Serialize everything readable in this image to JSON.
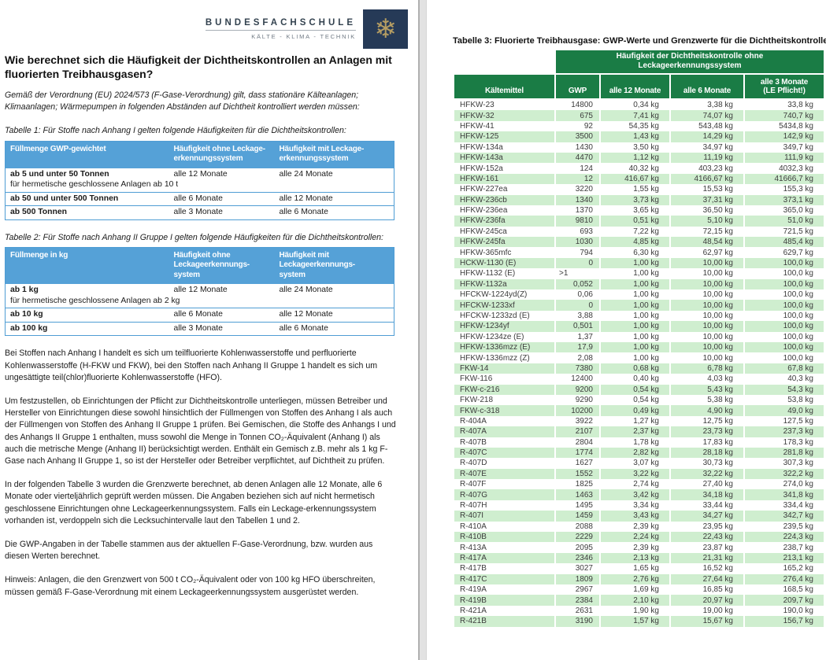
{
  "page_left": {
    "logo": {
      "name": "BUNDESFACHSCHULE",
      "tagline": "KÄLTE - KLIMA - TECHNIK",
      "snowflake_glyph": "❄",
      "navy_color": "#263a57",
      "gold_color": "#b59d62"
    },
    "heading": "Wie berechnet sich die Häufigkeit der Dichtheitskontrollen an Anlagen mit fluorierten Treibhausgasen?",
    "intro": "Gemäß der Verordnung (EU) 2024/573 (F-Gase-Verordnung) gilt, dass stationäre Kälteanlagen; Klimaanlagen; Wärmepumpen in folgenden Abständen auf Dichtheit kontrolliert werden müssen:",
    "table1_caption": "Tabelle 1: Für Stoffe nach Anhang I gelten folgende Häufigkeiten für die Dichtheitskontrollen:",
    "table1": {
      "headers": [
        "Füllmenge GWP-gewichtet",
        "Häufigkeit ohne Leckage-\nerkennungssystem",
        "Häufigkeit mit Leckage-\nerkennungssystem"
      ],
      "rows": [
        {
          "label": "ab 5 und unter 50 Tonnen",
          "sublabel": "für hermetische geschlossene Anlagen ab 10 t",
          "ohne": "alle 12 Monate",
          "mit": "alle 24 Monate"
        },
        {
          "label": "ab 50 und unter 500 Tonnen",
          "sublabel": "",
          "ohne": "alle 6 Monate",
          "mit": "alle 12 Monate"
        },
        {
          "label": "ab 500 Tonnen",
          "sublabel": "",
          "ohne": "alle 3 Monate",
          "mit": "alle 6 Monate"
        }
      ],
      "header_color": "#55a1d7"
    },
    "table2_caption": "Tabelle 2: Für Stoffe nach Anhang II Gruppe I gelten folgende Häufigkeiten für die Dichtheitskontrollen:",
    "table2": {
      "headers": [
        "Füllmenge in kg",
        "Häufigkeit ohne\nLeckageerkennungs-\nsystem",
        "Häufigkeit mit\nLeckageerkennungs-\nsystem"
      ],
      "rows": [
        {
          "label": "ab 1 kg",
          "sublabel": "für hermetische geschlossene Anlagen ab 2 kg",
          "ohne": "alle 12 Monate",
          "mit": "alle 24 Monate"
        },
        {
          "label": "ab 10 kg",
          "sublabel": "",
          "ohne": "alle 6 Monate",
          "mit": "alle 12 Monate"
        },
        {
          "label": "ab 100 kg",
          "sublabel": "",
          "ohne": "alle 3 Monate",
          "mit": "alle 6 Monate"
        }
      ],
      "header_color": "#55a1d7"
    },
    "paragraphs": [
      "Bei Stoffen nach Anhang I handelt es sich um teilfluorierte Kohlenwasserstoffe und perfluorierte Kohlenwasserstoffe (H-FKW und FKW), bei den Stoffen nach Anhang II Gruppe 1 handelt es sich um ungesättigte teil(chlor)fluorierte Kohlenwasserstoffe (HFO).",
      "Um festzustellen, ob Einrichtungen der Pflicht zur Dichtheitskontrolle unterliegen, müssen Betreiber und Hersteller von Einrichtungen diese sowohl hinsichtlich der Füllmengen von Stoffen des Anhang I als auch der Füllmengen von Stoffen des Anhang II Gruppe 1 prüfen. Bei Gemischen, die Stoffe des Anhangs I und des Anhangs II Gruppe 1 enthalten, muss sowohl die Menge in Tonnen CO₂-Äquivalent (Anhang I) als auch die metrische Menge (Anhang II) berücksichtigt werden. Enthält ein Gemisch z.B. mehr als 1 kg F-Gase nach Anhang II Gruppe 1, so ist der Hersteller oder Betreiber verpflichtet, auf Dichtheit zu prüfen.",
      "In der folgenden Tabelle 3 wurden die Grenzwerte berechnet, ab denen Anlagen alle 12 Monate, alle 6 Monate oder vierteljährlich geprüft werden müssen. Die Angaben beziehen sich auf nicht hermetisch geschlossene Einrichtungen ohne Leckageerkennungssystem. Falls ein Leckage-erkennungssystem vorhanden ist, verdoppeln sich die Lecksuchintervalle laut den Tabellen 1 und 2.",
      "Die GWP-Angaben in der Tabelle stammen aus der aktuellen F-Gase-Verordnung, bzw. wurden aus diesen Werten berechnet.",
      "Hinweis: Anlagen, die den Grenzwert von 500 t CO₂-Äquivalent oder von 100 kg HFO überschreiten, müssen gemäß F-Gase-Verordnung mit einem Leckageerkennungssystem ausgerüstet werden."
    ]
  },
  "page_right": {
    "title": "Tabelle 3: Fluorierte Treibhausgase: GWP-Werte und Grenzwerte für die Dichtheitskontrolle",
    "table3": {
      "band_header": "Häufigkeit der Dichtheitskontrolle ohne\nLeckageerkennungssystem",
      "columns": [
        "Kältemittel",
        "GWP",
        "alle 12 Monate",
        "alle 6 Monate",
        "alle 3 Monate\n(LE Pflicht!)"
      ],
      "header_color": "#1a7c45",
      "alt_row_color": "#cfeecf",
      "rows": [
        [
          "HFKW-23",
          "14800",
          "0,34 kg",
          "3,38 kg",
          "33,8 kg"
        ],
        [
          "HFKW-32",
          "675",
          "7,41 kg",
          "74,07 kg",
          "740,7 kg"
        ],
        [
          "HFKW-41",
          "92",
          "54,35 kg",
          "543,48 kg",
          "5434,8 kg"
        ],
        [
          "HFKW-125",
          "3500",
          "1,43 kg",
          "14,29 kg",
          "142,9 kg"
        ],
        [
          "HFKW-134a",
          "1430",
          "3,50 kg",
          "34,97 kg",
          "349,7 kg"
        ],
        [
          "HFKW-143a",
          "4470",
          "1,12 kg",
          "11,19 kg",
          "111,9 kg"
        ],
        [
          "HFKW-152a",
          "124",
          "40,32 kg",
          "403,23 kg",
          "4032,3 kg"
        ],
        [
          "HFKW-161",
          "12",
          "416,67 kg",
          "4166,67 kg",
          "41666,7 kg"
        ],
        [
          "HFKW-227ea",
          "3220",
          "1,55 kg",
          "15,53 kg",
          "155,3 kg"
        ],
        [
          "HFKW-236cb",
          "1340",
          "3,73 kg",
          "37,31 kg",
          "373,1 kg"
        ],
        [
          "HFKW-236ea",
          "1370",
          "3,65 kg",
          "36,50 kg",
          "365,0 kg"
        ],
        [
          "HFKW-236fa",
          "9810",
          "0,51 kg",
          "5,10 kg",
          "51,0 kg"
        ],
        [
          "HFKW-245ca",
          "693",
          "7,22 kg",
          "72,15 kg",
          "721,5 kg"
        ],
        [
          "HFKW-245fa",
          "1030",
          "4,85 kg",
          "48,54 kg",
          "485,4 kg"
        ],
        [
          "HFKW-365mfc",
          "794",
          "6,30 kg",
          "62,97 kg",
          "629,7 kg"
        ],
        [
          "HCKW-1130 (E)",
          "0",
          "1,00 kg",
          "10,00 kg",
          "100,0 kg"
        ],
        [
          "HFKW-1132 (E)",
          ">1",
          "1,00 kg",
          "10,00 kg",
          "100,0 kg"
        ],
        [
          "HFKW-1132a",
          "0,052",
          "1,00 kg",
          "10,00 kg",
          "100,0 kg"
        ],
        [
          "HFCKW-1224yd(Z)",
          "0,06",
          "1,00 kg",
          "10,00 kg",
          "100,0 kg"
        ],
        [
          "HFCKW-1233xf",
          "0",
          "1,00 kg",
          "10,00 kg",
          "100,0 kg"
        ],
        [
          "HFCKW-1233zd (E)",
          "3,88",
          "1,00 kg",
          "10,00 kg",
          "100,0 kg"
        ],
        [
          "HFKW-1234yf",
          "0,501",
          "1,00 kg",
          "10,00 kg",
          "100,0 kg"
        ],
        [
          "HFKW-1234ze (E)",
          "1,37",
          "1,00 kg",
          "10,00 kg",
          "100,0 kg"
        ],
        [
          "HFKW-1336mzz (E)",
          "17,9",
          "1,00 kg",
          "10,00 kg",
          "100,0 kg"
        ],
        [
          "HFKW-1336mzz (Z)",
          "2,08",
          "1,00 kg",
          "10,00 kg",
          "100,0 kg"
        ],
        [
          "FKW-14",
          "7380",
          "0,68 kg",
          "6,78 kg",
          "67,8 kg"
        ],
        [
          "FKW-116",
          "12400",
          "0,40 kg",
          "4,03 kg",
          "40,3 kg"
        ],
        [
          "FKW-c-216",
          "9200",
          "0,54 kg",
          "5,43 kg",
          "54,3 kg"
        ],
        [
          "FKW-218",
          "9290",
          "0,54 kg",
          "5,38 kg",
          "53,8 kg"
        ],
        [
          "FKW-c-318",
          "10200",
          "0,49 kg",
          "4,90 kg",
          "49,0 kg"
        ],
        [
          "R-404A",
          "3922",
          "1,27 kg",
          "12,75 kg",
          "127,5 kg"
        ],
        [
          "R-407A",
          "2107",
          "2,37 kg",
          "23,73 kg",
          "237,3 kg"
        ],
        [
          "R-407B",
          "2804",
          "1,78 kg",
          "17,83 kg",
          "178,3 kg"
        ],
        [
          "R-407C",
          "1774",
          "2,82 kg",
          "28,18 kg",
          "281,8 kg"
        ],
        [
          "R-407D",
          "1627",
          "3,07 kg",
          "30,73 kg",
          "307,3 kg"
        ],
        [
          "R-407E",
          "1552",
          "3,22 kg",
          "32,22 kg",
          "322,2 kg"
        ],
        [
          "R-407F",
          "1825",
          "2,74 kg",
          "27,40 kg",
          "274,0 kg"
        ],
        [
          "R-407G",
          "1463",
          "3,42 kg",
          "34,18 kg",
          "341,8 kg"
        ],
        [
          "R-407H",
          "1495",
          "3,34 kg",
          "33,44 kg",
          "334,4 kg"
        ],
        [
          "R-407I",
          "1459",
          "3,43 kg",
          "34,27 kg",
          "342,7 kg"
        ],
        [
          "R-410A",
          "2088",
          "2,39 kg",
          "23,95 kg",
          "239,5 kg"
        ],
        [
          "R-410B",
          "2229",
          "2,24 kg",
          "22,43 kg",
          "224,3 kg"
        ],
        [
          "R-413A",
          "2095",
          "2,39 kg",
          "23,87 kg",
          "238,7 kg"
        ],
        [
          "R-417A",
          "2346",
          "2,13 kg",
          "21,31 kg",
          "213,1 kg"
        ],
        [
          "R-417B",
          "3027",
          "1,65 kg",
          "16,52 kg",
          "165,2 kg"
        ],
        [
          "R-417C",
          "1809",
          "2,76 kg",
          "27,64 kg",
          "276,4 kg"
        ],
        [
          "R-419A",
          "2967",
          "1,69 kg",
          "16,85 kg",
          "168,5 kg"
        ],
        [
          "R-419B",
          "2384",
          "2,10 kg",
          "20,97 kg",
          "209,7 kg"
        ],
        [
          "R-421A",
          "2631",
          "1,90 kg",
          "19,00 kg",
          "190,0 kg"
        ],
        [
          "R-421B",
          "3190",
          "1,57 kg",
          "15,67 kg",
          "156,7 kg"
        ]
      ]
    }
  }
}
